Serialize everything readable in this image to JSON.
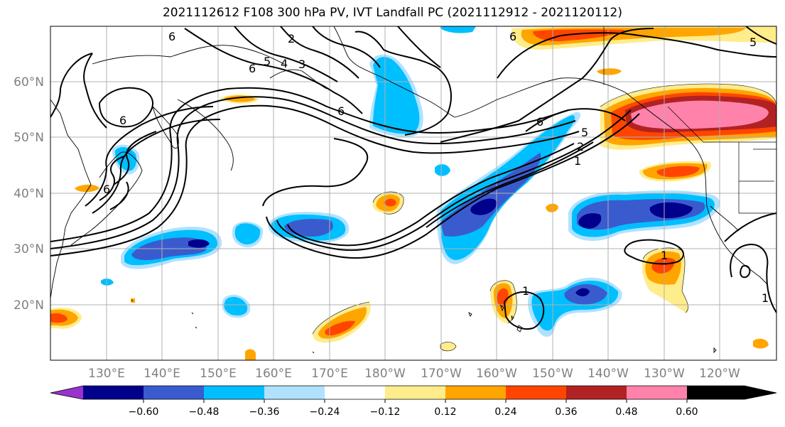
{
  "title": "2021112612 F108 300 hPa PV, IVT Landfall PC (2021112912 - 2021120112)",
  "map": {
    "lon_ticks": [
      "130°E",
      "140°E",
      "150°E",
      "160°E",
      "170°E",
      "180°W",
      "170°W",
      "160°W",
      "150°W",
      "140°W",
      "130°W",
      "120°W"
    ],
    "lat_ticks": [
      "60°N",
      "50°N",
      "40°N",
      "30°N",
      "20°N"
    ],
    "contour_labels": [
      "6",
      "5",
      "4",
      "3",
      "2",
      "1"
    ]
  },
  "colorbar": {
    "labels": [
      "−0.60",
      "−0.48",
      "−0.36",
      "−0.24",
      "−0.12",
      "0.12",
      "0.24",
      "0.36",
      "0.48",
      "0.60"
    ],
    "colors": [
      "#9932CC",
      "#00008B",
      "#3A5BCE",
      "#00BFFF",
      "#B0E2FF",
      "#FFFFFF",
      "#FFEC8B",
      "#FFA500",
      "#FF4500",
      "#B22222",
      "#FF82AB"
    ]
  }
}
